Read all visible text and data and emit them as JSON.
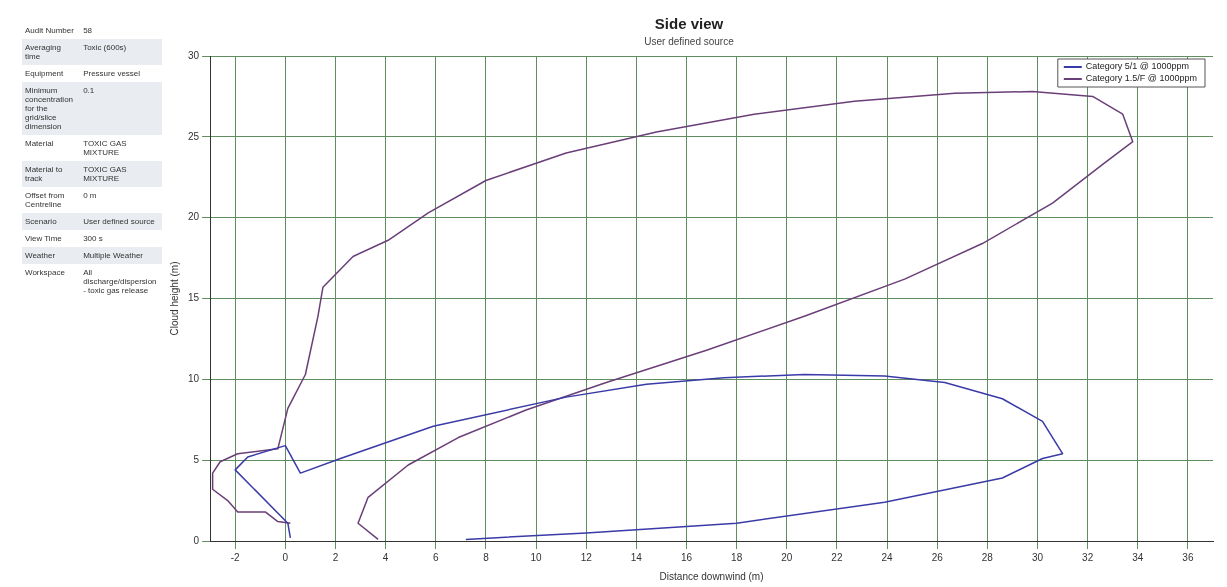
{
  "chart_data": {
    "type": "line",
    "title": "Side view",
    "subtitle": "User defined source",
    "xlabel": "Distance downwind (m)",
    "ylabel": "Cloud height (m)",
    "annotations": [
      "Audit Number",
      "58",
      "Averaging time",
      "Toxic (600s)",
      "Equipment",
      "Pressure vessel",
      "Minimum concentration for the grid/slice dimension",
      "0.1",
      "Material",
      "TOXIC GAS MIXTURE",
      "Material to track",
      "TOXIC GAS MIXTURE",
      "Offset from Centreline",
      "0 m",
      "Scenario",
      "User defined source",
      "View Time",
      "300 s",
      "Weather",
      "Multiple Weather",
      "Workspace",
      "All discharge/dispersion - toxic gas release"
    ],
    "xlim": [
      -3,
      37
    ],
    "xticks": [
      -2,
      0,
      2,
      4,
      6,
      8,
      10,
      12,
      14,
      16,
      18,
      20,
      22,
      24,
      26,
      28,
      30,
      32,
      34,
      36
    ],
    "ylim": [
      0,
      30
    ],
    "yticks": [
      0,
      5,
      10,
      15,
      20,
      25,
      30
    ],
    "grid": true,
    "legend": "top right",
    "marker": "none",
    "line_style": "solid",
    "series": [
      {
        "name": "Category 5/1 @ 1000ppm",
        "color": "#3a3aa8",
        "x": [
          0.2,
          0.1,
          -2,
          -1.5,
          0,
          0.6,
          2.2,
          5.9,
          11.2,
          14.4,
          17.5,
          20.7,
          23.9,
          26.3,
          28.6,
          30.2,
          31,
          30.2,
          28.6,
          23.9,
          18,
          12,
          7.2
        ],
        "values": [
          0.2,
          1.1,
          4.4,
          5.2,
          5.9,
          4.2,
          5.1,
          7.1,
          8.9,
          9.7,
          10.1,
          10.3,
          10.2,
          9.8,
          8.8,
          7.4,
          5.4,
          5.1,
          3.9,
          2.4,
          1.1,
          0.5,
          0.1
        ]
      },
      {
        "name": "Category 1.5/F @ 1000ppm",
        "color": "#6a3f78",
        "x": [
          0.2,
          -0.3,
          -0.8,
          -1.9,
          -2.3,
          -2.9,
          -2.9,
          -2.6,
          -1.9,
          -0.3,
          0.1,
          0.8,
          1.3,
          1.5,
          2.7,
          4.1,
          5.7,
          8,
          11.2,
          14.8,
          18.7,
          22.7,
          26.7,
          29.8,
          32.2,
          33.4,
          33.8,
          32.6,
          30.6,
          27.8,
          24.7,
          20.7,
          16.8,
          12.8,
          9.6,
          6.9,
          4.9,
          3.3,
          2.9,
          3.7
        ],
        "values": [
          1.1,
          1.2,
          1.8,
          1.8,
          2.5,
          3.2,
          4.2,
          4.9,
          5.4,
          5.7,
          8.2,
          10.3,
          13.9,
          15.7,
          17.6,
          18.6,
          20.3,
          22.3,
          24,
          25.3,
          26.4,
          27.2,
          27.7,
          27.8,
          27.5,
          26.4,
          24.7,
          23.3,
          20.9,
          18.4,
          16.2,
          13.9,
          11.8,
          9.8,
          8.1,
          6.4,
          4.7,
          2.7,
          1.1,
          0.1
        ]
      }
    ]
  }
}
